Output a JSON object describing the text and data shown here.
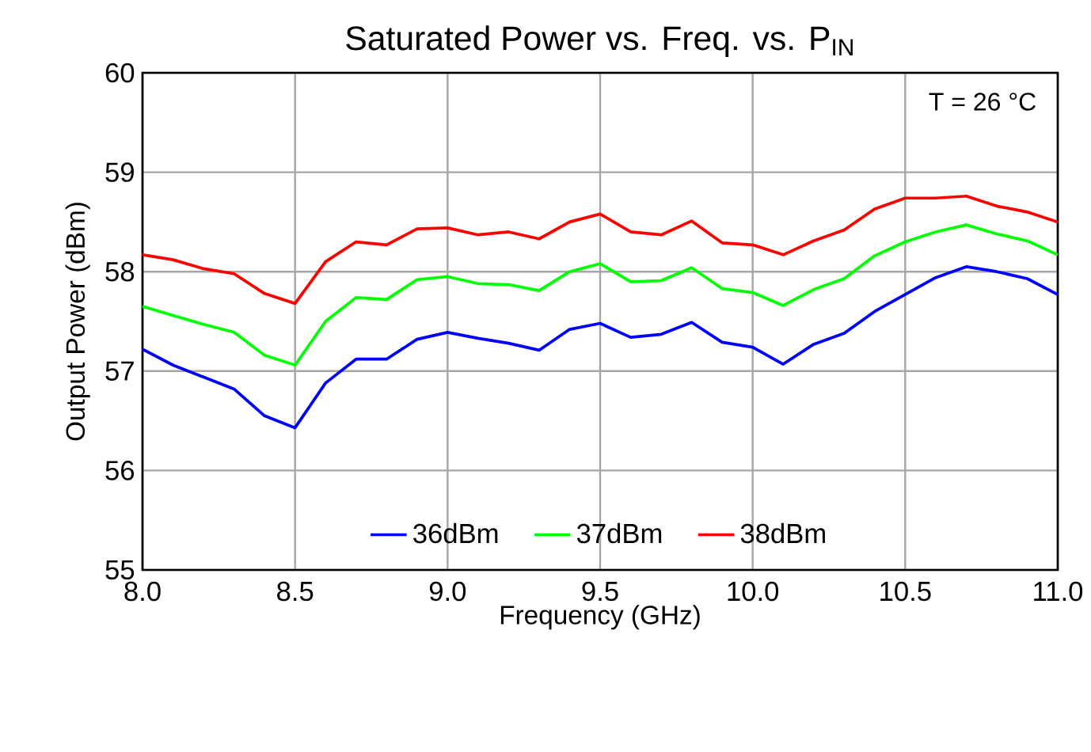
{
  "chart_data": {
    "type": "line",
    "title": "Saturated Power vs. Freq. vs. P$_{IN}$",
    "xlabel": "Frequency (GHz)",
    "ylabel": "Output Power (dBm)",
    "annotations": [
      "T = 26 °C"
    ],
    "x": [
      8.0,
      8.1,
      8.2,
      8.3,
      8.4,
      8.5,
      8.6,
      8.7,
      8.8,
      8.9,
      9.0,
      9.1,
      9.2,
      9.3,
      9.4,
      9.5,
      9.6,
      9.7,
      9.8,
      9.9,
      10.0,
      10.1,
      10.2,
      10.3,
      10.4,
      10.5,
      10.6,
      10.7,
      10.8,
      10.9,
      11.0
    ],
    "series": [
      {
        "name": "36dBm",
        "color": "#0000ff",
        "values": [
          57.22,
          57.06,
          56.94,
          56.82,
          56.55,
          56.43,
          56.88,
          57.12,
          57.12,
          57.32,
          57.39,
          57.33,
          57.28,
          57.21,
          57.42,
          57.48,
          57.34,
          57.37,
          57.49,
          57.29,
          57.24,
          57.07,
          57.27,
          57.38,
          57.6,
          57.77,
          57.94,
          58.05,
          58.0,
          57.93,
          57.77
        ]
      },
      {
        "name": "37dBm",
        "color": "#00ff00",
        "values": [
          57.65,
          57.56,
          57.47,
          57.39,
          57.16,
          57.06,
          57.5,
          57.74,
          57.72,
          57.92,
          57.95,
          57.88,
          57.87,
          57.81,
          58.0,
          58.08,
          57.9,
          57.91,
          58.04,
          57.83,
          57.79,
          57.66,
          57.82,
          57.93,
          58.16,
          58.3,
          58.4,
          58.47,
          58.38,
          58.31,
          58.17
        ]
      },
      {
        "name": "38dBm",
        "color": "#ff0000",
        "values": [
          58.17,
          58.12,
          58.03,
          57.98,
          57.78,
          57.68,
          58.1,
          58.3,
          58.27,
          58.43,
          58.44,
          58.37,
          58.4,
          58.33,
          58.5,
          58.58,
          58.4,
          58.37,
          58.51,
          58.29,
          58.27,
          58.17,
          58.31,
          58.42,
          58.63,
          58.74,
          58.74,
          58.76,
          58.66,
          58.6,
          58.5
        ]
      }
    ],
    "xlim": [
      8.0,
      11.0
    ],
    "ylim": [
      55,
      60
    ],
    "xticks": [
      {
        "value": 8.0,
        "label": "8.0"
      },
      {
        "value": 8.5,
        "label": "8.5"
      },
      {
        "value": 9.0,
        "label": "9.0"
      },
      {
        "value": 9.5,
        "label": "9.5"
      },
      {
        "value": 10.0,
        "label": "10.0"
      },
      {
        "value": 10.5,
        "label": "10.5"
      },
      {
        "value": 11.0,
        "label": "11.0"
      }
    ],
    "yticks": [
      55,
      56,
      57,
      58,
      59,
      60
    ],
    "grid": true,
    "legend": "bottom",
    "marker": "none",
    "line_style": "solid"
  }
}
